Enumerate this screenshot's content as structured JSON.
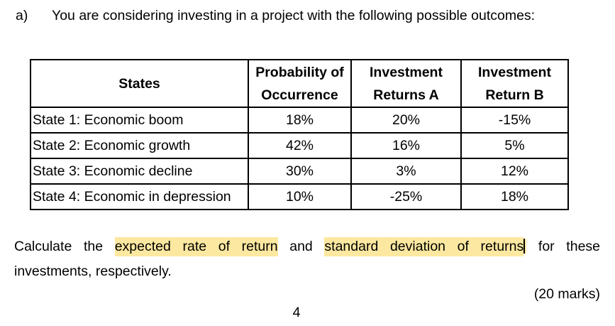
{
  "document": {
    "question_label": "a)",
    "question_text": "You are considering investing in a project with the following possible outcomes:",
    "marks_label": "(20 marks)",
    "page_number": "4"
  },
  "table": {
    "headers": [
      {
        "line1": "States",
        "line2": ""
      },
      {
        "line1": "Probability of",
        "line2": "Occurrence"
      },
      {
        "line1": "Investment",
        "line2": "Returns A"
      },
      {
        "line1": "Investment",
        "line2": "Return B"
      }
    ],
    "rows": [
      {
        "state": "State 1: Economic boom",
        "probability": "18%",
        "return_a": "20%",
        "return_b": "-15%"
      },
      {
        "state": "State 2: Economic growth",
        "probability": "42%",
        "return_a": "16%",
        "return_b": "5%"
      },
      {
        "state": "State 3: Economic decline",
        "probability": "30%",
        "return_a": "3%",
        "return_b": "12%"
      },
      {
        "state": "State 4: Economic in depression",
        "probability": "10%",
        "return_a": "-25%",
        "return_b": "18%"
      }
    ]
  },
  "instruction": {
    "segment_1": "Calculate the ",
    "highlight_1": "expected rate of return",
    "segment_2": " and ",
    "highlight_2": "standard deviation of returns",
    "segment_3": " for these",
    "line_2": "investments, respectively."
  },
  "colors": {
    "highlight_yellow": "#fce8a0",
    "text": "#000000",
    "background": "#ffffff"
  }
}
